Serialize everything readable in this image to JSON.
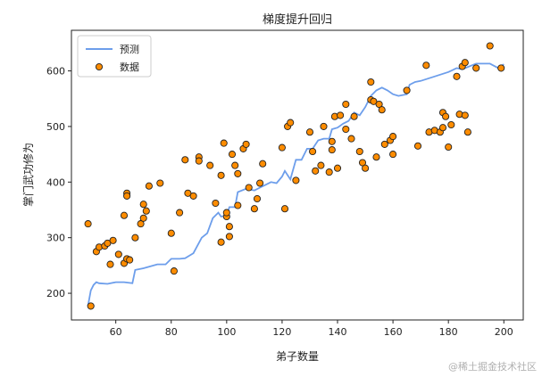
{
  "chart_data": {
    "type": "scatter",
    "title": "梯度提升回归",
    "xlabel": "弟子数量",
    "ylabel": "掌门武功修为",
    "xlim": [
      44,
      207
    ],
    "ylim": [
      152,
      673
    ],
    "xticks": [
      60,
      80,
      100,
      120,
      140,
      160,
      180,
      200
    ],
    "yticks": [
      200,
      300,
      400,
      500,
      600
    ],
    "legend_position": "top-left",
    "colors": {
      "line": "#6d9eeb",
      "point_fill": "#ff8c00",
      "point_edge": "#222222",
      "axes": "#222222"
    },
    "series": [
      {
        "name": "预测",
        "kind": "line",
        "x": [
          50,
          51,
          52,
          53,
          54,
          57,
          60,
          63,
          66,
          67,
          70,
          75,
          78,
          80,
          83,
          85,
          88,
          91,
          93,
          95,
          97,
          98,
          100,
          101,
          103,
          104,
          107,
          110,
          112,
          114,
          116,
          118,
          120,
          121,
          123,
          125,
          127,
          129,
          131,
          133,
          135,
          137,
          138,
          140,
          142,
          144,
          146,
          148,
          150,
          152,
          154,
          156,
          158,
          160,
          162,
          165,
          166,
          168,
          170,
          175,
          180,
          183,
          185,
          190,
          195,
          198,
          200
        ],
        "y": [
          178,
          205,
          215,
          220,
          218,
          217,
          220,
          220,
          218,
          242,
          245,
          252,
          252,
          262,
          262,
          263,
          272,
          300,
          308,
          335,
          345,
          338,
          340,
          355,
          355,
          382,
          388,
          385,
          390,
          395,
          400,
          398,
          410,
          420,
          405,
          440,
          440,
          460,
          460,
          475,
          478,
          478,
          495,
          498,
          505,
          510,
          525,
          520,
          535,
          555,
          565,
          570,
          565,
          558,
          555,
          558,
          575,
          580,
          582,
          590,
          598,
          605,
          603,
          613,
          613,
          605,
          612
        ]
      },
      {
        "name": "数据",
        "kind": "scatter",
        "points": [
          [
            50,
            325
          ],
          [
            51,
            177
          ],
          [
            53,
            275
          ],
          [
            54,
            283
          ],
          [
            56,
            285
          ],
          [
            57,
            290
          ],
          [
            58,
            252
          ],
          [
            59,
            295
          ],
          [
            61,
            270
          ],
          [
            63,
            340
          ],
          [
            63,
            254
          ],
          [
            64,
            380
          ],
          [
            64,
            375
          ],
          [
            64,
            262
          ],
          [
            65,
            260
          ],
          [
            67,
            300
          ],
          [
            69,
            325
          ],
          [
            70,
            360
          ],
          [
            70,
            335
          ],
          [
            71,
            348
          ],
          [
            72,
            393
          ],
          [
            76,
            398
          ],
          [
            80,
            308
          ],
          [
            81,
            240
          ],
          [
            83,
            345
          ],
          [
            85,
            440
          ],
          [
            86,
            380
          ],
          [
            88,
            375
          ],
          [
            90,
            445
          ],
          [
            90,
            438
          ],
          [
            94,
            430
          ],
          [
            96,
            362
          ],
          [
            98,
            412
          ],
          [
            98,
            292
          ],
          [
            99,
            470
          ],
          [
            100,
            338
          ],
          [
            100,
            345
          ],
          [
            101,
            320
          ],
          [
            101,
            302
          ],
          [
            102,
            450
          ],
          [
            103,
            430
          ],
          [
            104,
            415
          ],
          [
            104,
            358
          ],
          [
            106,
            460
          ],
          [
            107,
            468
          ],
          [
            108,
            390
          ],
          [
            110,
            352
          ],
          [
            111,
            370
          ],
          [
            112,
            398
          ],
          [
            113,
            433
          ],
          [
            120,
            462
          ],
          [
            121,
            352
          ],
          [
            122,
            500
          ],
          [
            123,
            507
          ],
          [
            125,
            403
          ],
          [
            130,
            490
          ],
          [
            131,
            455
          ],
          [
            132,
            420
          ],
          [
            134,
            430
          ],
          [
            135,
            500
          ],
          [
            137,
            418
          ],
          [
            138,
            473
          ],
          [
            138,
            458
          ],
          [
            139,
            518
          ],
          [
            140,
            425
          ],
          [
            141,
            520
          ],
          [
            143,
            540
          ],
          [
            143,
            495
          ],
          [
            145,
            478
          ],
          [
            146,
            518
          ],
          [
            148,
            455
          ],
          [
            149,
            435
          ],
          [
            150,
            425
          ],
          [
            152,
            548
          ],
          [
            152,
            580
          ],
          [
            153,
            545
          ],
          [
            154,
            445
          ],
          [
            155,
            540
          ],
          [
            156,
            530
          ],
          [
            157,
            468
          ],
          [
            159,
            475
          ],
          [
            160,
            482
          ],
          [
            160,
            450
          ],
          [
            165,
            565
          ],
          [
            169,
            465
          ],
          [
            172,
            610
          ],
          [
            173,
            490
          ],
          [
            175,
            493
          ],
          [
            177,
            490
          ],
          [
            178,
            498
          ],
          [
            178,
            525
          ],
          [
            179,
            518
          ],
          [
            180,
            463
          ],
          [
            181,
            503
          ],
          [
            183,
            590
          ],
          [
            184,
            522
          ],
          [
            185,
            608
          ],
          [
            186,
            615
          ],
          [
            186,
            520
          ],
          [
            187,
            490
          ],
          [
            190,
            605
          ],
          [
            195,
            645
          ],
          [
            199,
            605
          ]
        ]
      }
    ]
  },
  "watermark": "@稀土掘金技术社区"
}
